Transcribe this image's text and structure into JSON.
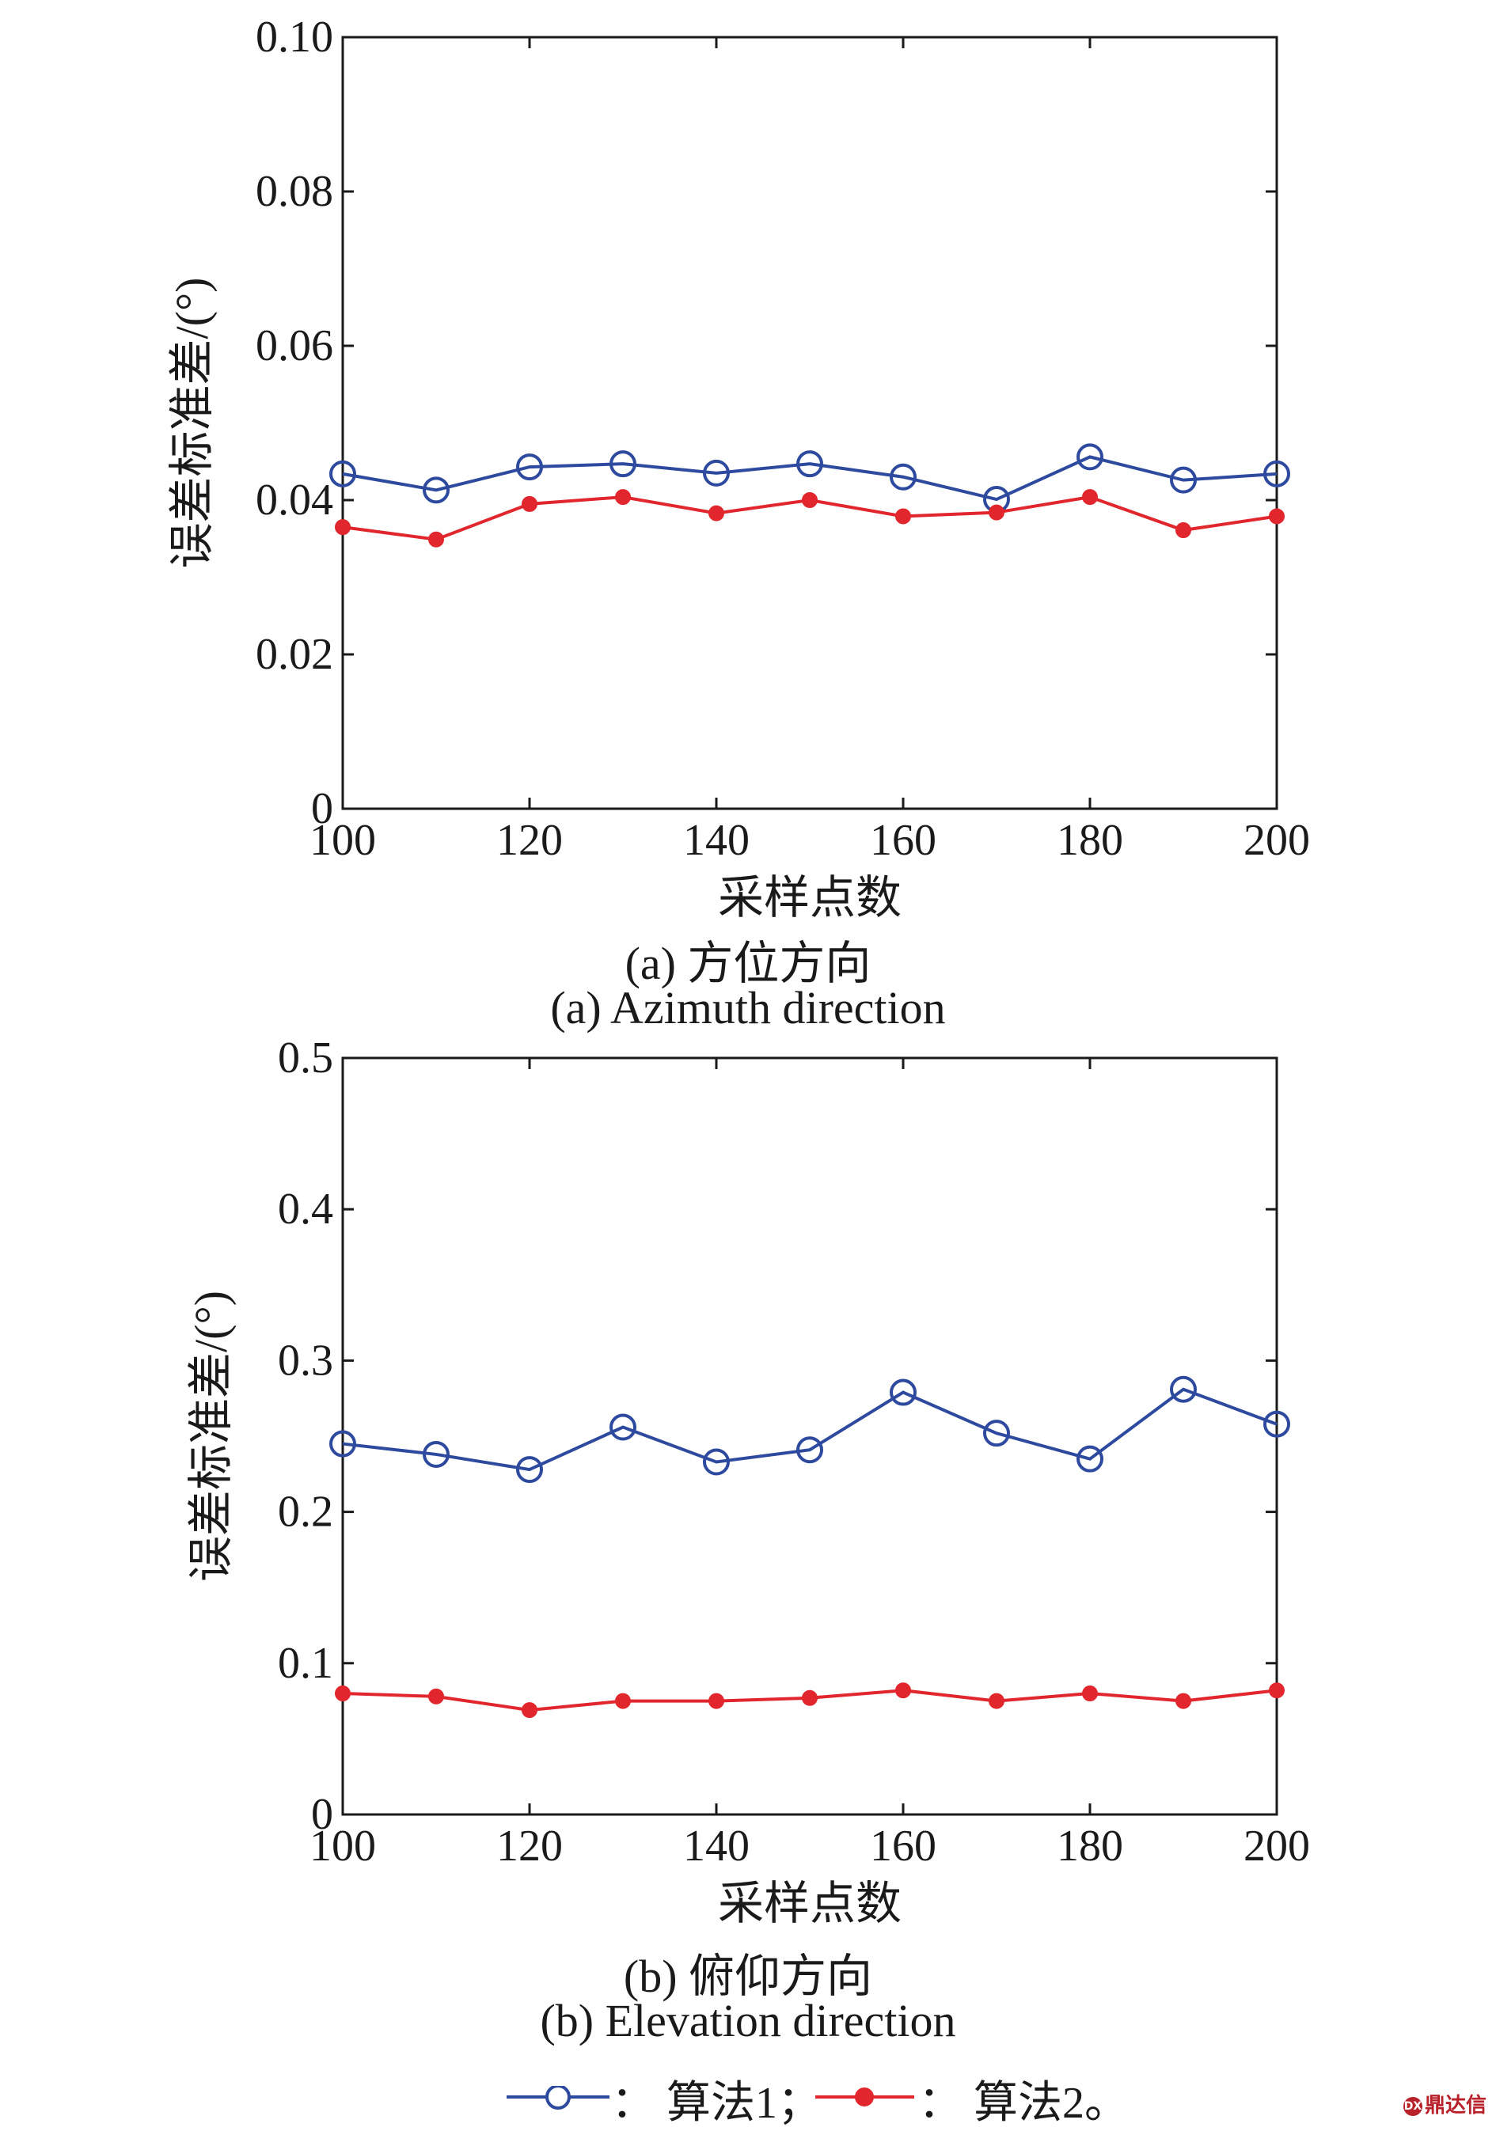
{
  "chart_data": [
    {
      "type": "line",
      "ylabel": "误差标准差/(°)",
      "xlabel": "采样点数",
      "caption_cn": "(a) 方位方向",
      "caption_en": "(a) Azimuth direction",
      "x": [
        100,
        110,
        120,
        130,
        140,
        150,
        160,
        170,
        180,
        190,
        200
      ],
      "xticks": [
        "100",
        "120",
        "140",
        "160",
        "180",
        "200"
      ],
      "xlim": [
        100,
        200
      ],
      "ylim": [
        0,
        0.1
      ],
      "yticks": [
        "0",
        "0.02",
        "0.04",
        "0.06",
        "0.08",
        "0.10"
      ],
      "grid": false,
      "series": [
        {
          "name": "算法1",
          "color": "#2e4a9e",
          "marker": "open-circle",
          "values": [
            0.0434,
            0.0413,
            0.0443,
            0.0447,
            0.0435,
            0.0447,
            0.043,
            0.0401,
            0.0456,
            0.0426,
            0.0434
          ]
        },
        {
          "name": "算法2",
          "color": "#e1262d",
          "marker": "filled-circle",
          "values": [
            0.0365,
            0.0349,
            0.0395,
            0.0404,
            0.0383,
            0.04,
            0.0379,
            0.0384,
            0.0404,
            0.0361,
            0.0379
          ]
        }
      ]
    },
    {
      "type": "line",
      "ylabel": "误差标准差/(°)",
      "xlabel": "采样点数",
      "caption_cn": "(b) 俯仰方向",
      "caption_en": "(b) Elevation direction",
      "x": [
        100,
        110,
        120,
        130,
        140,
        150,
        160,
        170,
        180,
        190,
        200
      ],
      "xticks": [
        "100",
        "120",
        "140",
        "160",
        "180",
        "200"
      ],
      "xlim": [
        100,
        200
      ],
      "ylim": [
        0,
        0.5
      ],
      "yticks": [
        "0",
        "0.1",
        "0.2",
        "0.3",
        "0.4",
        "0.5"
      ],
      "grid": false,
      "series": [
        {
          "name": "算法1",
          "color": "#2e4a9e",
          "marker": "open-circle",
          "values": [
            0.245,
            0.238,
            0.228,
            0.256,
            0.233,
            0.241,
            0.279,
            0.252,
            0.235,
            0.281,
            0.258
          ]
        },
        {
          "name": "算法2",
          "color": "#e1262d",
          "marker": "filled-circle",
          "values": [
            0.08,
            0.078,
            0.069,
            0.075,
            0.075,
            0.077,
            0.082,
            0.075,
            0.08,
            0.075,
            0.082
          ]
        }
      ]
    }
  ],
  "legend": {
    "item1": "：  算法1；",
    "item2": "：  算法2。"
  },
  "watermark": "鼎达信"
}
